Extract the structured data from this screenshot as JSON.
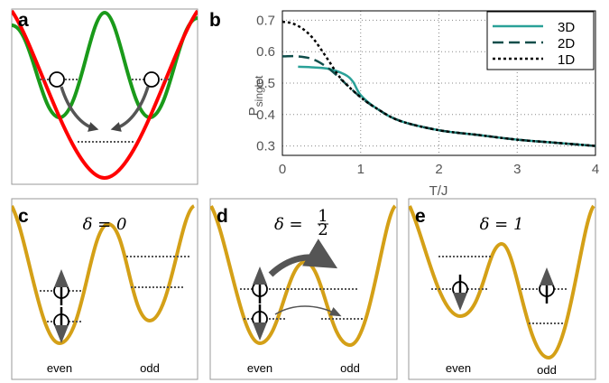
{
  "panels": {
    "a": {
      "letter": "a"
    },
    "b": {
      "letter": "b"
    },
    "c": {
      "letter": "c",
      "delta": "δ = 0",
      "left_label": "even",
      "right_label": "odd"
    },
    "d": {
      "letter": "d",
      "delta_prefix": "δ = ",
      "delta_num": "1",
      "delta_den": "2",
      "left_label": "even",
      "right_label": "odd"
    },
    "e": {
      "letter": "e",
      "delta": "δ = 1",
      "left_label": "even",
      "right_label": "odd"
    }
  },
  "colors": {
    "red": "#ff0000",
    "green": "#1a9a1a",
    "gold": "#d4a017",
    "teal_3d": "#2aa198",
    "dark_2d": "#0f4d4a",
    "black_1d": "#000000",
    "arrow_gray": "#555555"
  },
  "chart_data": {
    "type": "line",
    "xlabel": "T/J",
    "ylabel": "P",
    "ylabel_sub": "singlet",
    "xlim": [
      0,
      4
    ],
    "ylim": [
      0.27,
      0.73
    ],
    "xticks": [
      "0",
      "1",
      "2",
      "3",
      "4"
    ],
    "yticks": [
      "0.3",
      "0.4",
      "0.5",
      "0.6",
      "0.7"
    ],
    "grid": true,
    "legend_position": "top-right",
    "series": [
      {
        "name": "3D",
        "style": "solid",
        "color": "#2aa198",
        "x": [
          0.2,
          0.4,
          0.6,
          0.8,
          0.9,
          1.0,
          1.2,
          1.5,
          2.0,
          2.5,
          3.0,
          3.5,
          4.0
        ],
        "y": [
          0.552,
          0.55,
          0.545,
          0.527,
          0.505,
          0.462,
          0.42,
          0.38,
          0.35,
          0.335,
          0.32,
          0.31,
          0.3
        ]
      },
      {
        "name": "2D",
        "style": "dashed",
        "color": "#0f4d4a",
        "x": [
          0.0,
          0.2,
          0.4,
          0.6,
          0.8,
          1.0,
          1.2,
          1.5,
          2.0,
          2.5,
          3.0,
          3.5,
          4.0
        ],
        "y": [
          0.585,
          0.585,
          0.575,
          0.545,
          0.5,
          0.455,
          0.42,
          0.38,
          0.35,
          0.335,
          0.32,
          0.31,
          0.3
        ]
      },
      {
        "name": "1D",
        "style": "dotted",
        "color": "#000000",
        "x": [
          0.0,
          0.1,
          0.2,
          0.3,
          0.4,
          0.5,
          0.6,
          0.7,
          0.8,
          1.0,
          1.2,
          1.5,
          2.0,
          2.5,
          3.0,
          3.5,
          4.0
        ],
        "y": [
          0.695,
          0.692,
          0.682,
          0.665,
          0.64,
          0.605,
          0.568,
          0.53,
          0.5,
          0.455,
          0.42,
          0.38,
          0.35,
          0.335,
          0.32,
          0.31,
          0.3
        ]
      }
    ]
  }
}
